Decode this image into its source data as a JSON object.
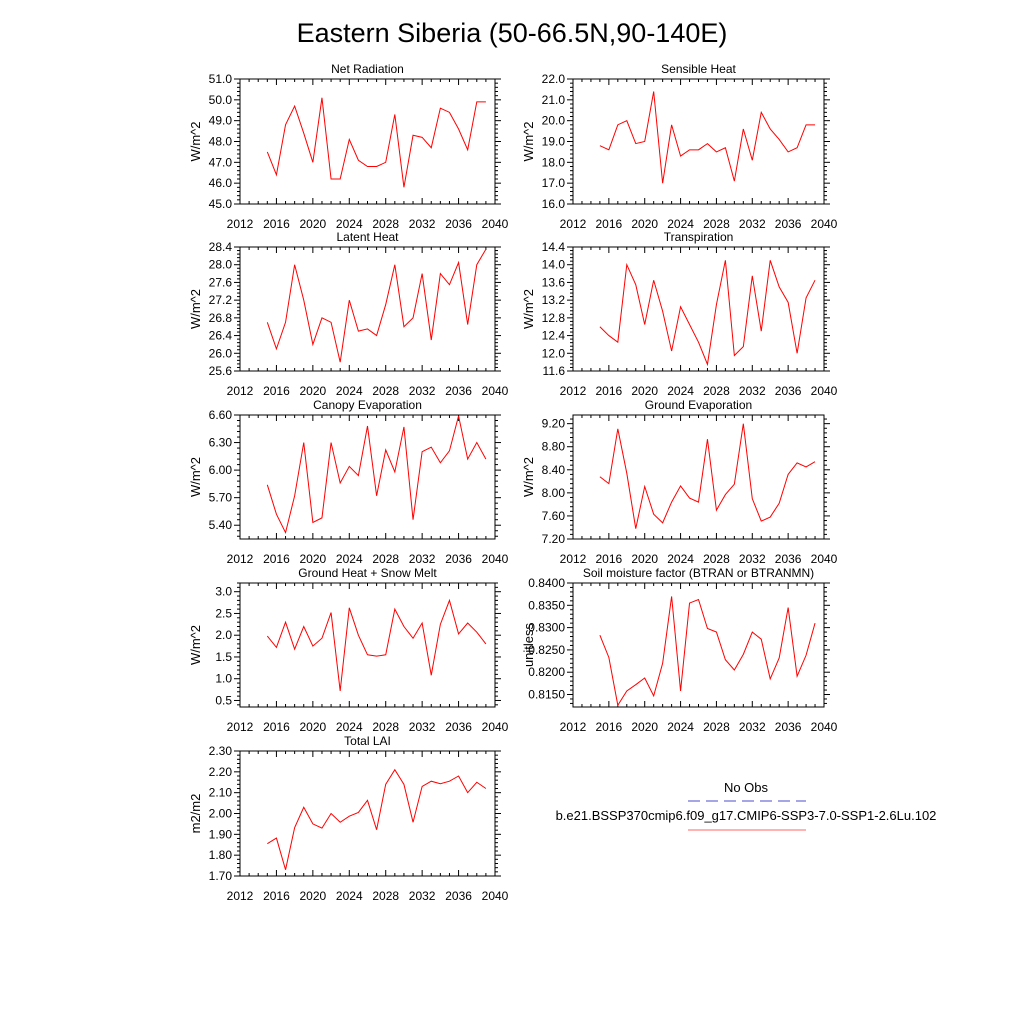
{
  "page_title": "Eastern Siberia (50-66.5N,90-140E)",
  "legend": {
    "items": [
      {
        "label": "No Obs",
        "color": "#4d4dcc",
        "style": "dashed"
      },
      {
        "label": "b.e21.BSSP370cmip6.f09_g17.CMIP6-SSP3-7.0-SSP1-2.6Lu.102",
        "color": "#ff6666",
        "style": "solid"
      }
    ]
  },
  "chart_data": [
    {
      "type": "line",
      "title": "Net Radiation",
      "ylabel": "W/m^2",
      "xlim": [
        2012,
        2040
      ],
      "xticks": [
        2012,
        2016,
        2020,
        2024,
        2028,
        2032,
        2036,
        2040
      ],
      "ylim": [
        45.0,
        51.0
      ],
      "yticks": [
        "45.0",
        "46.0",
        "47.0",
        "48.0",
        "49.0",
        "50.0",
        "51.0"
      ],
      "x": [
        2015,
        2016,
        2017,
        2018,
        2019,
        2020,
        2021,
        2022,
        2023,
        2024,
        2025,
        2026,
        2027,
        2028,
        2029,
        2030,
        2031,
        2032,
        2033,
        2034,
        2035,
        2036,
        2037,
        2038,
        2039
      ],
      "series": [
        {
          "color": "#ff0000",
          "values": [
            47.5,
            46.4,
            48.8,
            49.7,
            48.4,
            47.0,
            50.1,
            46.2,
            46.2,
            48.1,
            47.1,
            46.8,
            46.8,
            47.0,
            49.3,
            45.8,
            48.3,
            48.2,
            47.7,
            49.6,
            49.4,
            48.6,
            47.6,
            49.9,
            49.9
          ]
        }
      ]
    },
    {
      "type": "line",
      "title": "Sensible Heat",
      "ylabel": "W/m^2",
      "xlim": [
        2012,
        2040
      ],
      "xticks": [
        2012,
        2016,
        2020,
        2024,
        2028,
        2032,
        2036,
        2040
      ],
      "ylim": [
        16.0,
        22.0
      ],
      "yticks": [
        "16.0",
        "17.0",
        "18.0",
        "19.0",
        "20.0",
        "21.0",
        "22.0"
      ],
      "x": [
        2015,
        2016,
        2017,
        2018,
        2019,
        2020,
        2021,
        2022,
        2023,
        2024,
        2025,
        2026,
        2027,
        2028,
        2029,
        2030,
        2031,
        2032,
        2033,
        2034,
        2035,
        2036,
        2037,
        2038,
        2039
      ],
      "series": [
        {
          "color": "#ff0000",
          "values": [
            18.8,
            18.6,
            19.8,
            20.0,
            18.9,
            19.0,
            21.4,
            17.0,
            19.8,
            18.3,
            18.6,
            18.6,
            18.9,
            18.5,
            18.7,
            17.1,
            19.6,
            18.1,
            20.4,
            19.6,
            19.1,
            18.5,
            18.7,
            19.8,
            19.8
          ]
        }
      ]
    },
    {
      "type": "line",
      "title": "Latent Heat",
      "ylabel": "W/m^2",
      "xlim": [
        2012,
        2040
      ],
      "xticks": [
        2012,
        2016,
        2020,
        2024,
        2028,
        2032,
        2036,
        2040
      ],
      "ylim": [
        25.6,
        28.4
      ],
      "yticks": [
        "25.6",
        "26.0",
        "26.4",
        "26.8",
        "27.2",
        "27.6",
        "28.0",
        "28.4"
      ],
      "x": [
        2015,
        2016,
        2017,
        2018,
        2019,
        2020,
        2021,
        2022,
        2023,
        2024,
        2025,
        2026,
        2027,
        2028,
        2029,
        2030,
        2031,
        2032,
        2033,
        2034,
        2035,
        2036,
        2037,
        2038,
        2039
      ],
      "series": [
        {
          "color": "#ff0000",
          "values": [
            26.7,
            26.1,
            26.7,
            28.0,
            27.2,
            26.2,
            26.8,
            26.7,
            25.8,
            27.2,
            26.5,
            26.55,
            26.4,
            27.1,
            28.0,
            26.6,
            26.8,
            27.8,
            26.3,
            27.8,
            27.55,
            28.05,
            26.65,
            28.0,
            28.35
          ]
        }
      ]
    },
    {
      "type": "line",
      "title": "Transpiration",
      "ylabel": "W/m^2",
      "xlim": [
        2012,
        2040
      ],
      "xticks": [
        2012,
        2016,
        2020,
        2024,
        2028,
        2032,
        2036,
        2040
      ],
      "ylim": [
        11.6,
        14.4
      ],
      "yticks": [
        "11.6",
        "12.0",
        "12.4",
        "12.8",
        "13.2",
        "13.6",
        "14.0",
        "14.4"
      ],
      "x": [
        2015,
        2016,
        2017,
        2018,
        2019,
        2020,
        2021,
        2022,
        2023,
        2024,
        2025,
        2026,
        2027,
        2028,
        2029,
        2030,
        2031,
        2032,
        2033,
        2034,
        2035,
        2036,
        2037,
        2038,
        2039
      ],
      "series": [
        {
          "color": "#ff0000",
          "values": [
            12.6,
            12.4,
            12.25,
            14.0,
            13.55,
            12.65,
            13.65,
            12.95,
            12.05,
            13.05,
            12.65,
            12.25,
            11.75,
            13.1,
            14.1,
            11.95,
            12.15,
            13.75,
            12.5,
            14.1,
            13.5,
            13.15,
            12.0,
            13.25,
            13.65
          ]
        }
      ]
    },
    {
      "type": "line",
      "title": "Canopy Evaporation",
      "ylabel": "W/m^2",
      "xlim": [
        2012,
        2040
      ],
      "xticks": [
        2012,
        2016,
        2020,
        2024,
        2028,
        2032,
        2036,
        2040
      ],
      "ylim": [
        5.25,
        6.6
      ],
      "yticks": [
        "5.40",
        "5.70",
        "6.00",
        "6.30",
        "6.60"
      ],
      "x": [
        2015,
        2016,
        2017,
        2018,
        2019,
        2020,
        2021,
        2022,
        2023,
        2024,
        2025,
        2026,
        2027,
        2028,
        2029,
        2030,
        2031,
        2032,
        2033,
        2034,
        2035,
        2036,
        2037,
        2038,
        2039
      ],
      "series": [
        {
          "color": "#ff0000",
          "values": [
            5.84,
            5.52,
            5.32,
            5.72,
            6.3,
            5.43,
            5.48,
            6.3,
            5.86,
            6.04,
            5.94,
            6.48,
            5.72,
            6.22,
            5.98,
            6.47,
            5.46,
            6.2,
            6.25,
            6.08,
            6.21,
            6.59,
            6.12,
            6.3,
            6.12
          ]
        }
      ]
    },
    {
      "type": "line",
      "title": "Ground Evaporation",
      "ylabel": "W/m^2",
      "xlim": [
        2012,
        2040
      ],
      "xticks": [
        2012,
        2016,
        2020,
        2024,
        2028,
        2032,
        2036,
        2040
      ],
      "ylim": [
        7.2,
        9.35
      ],
      "yticks": [
        "7.20",
        "7.60",
        "8.00",
        "8.40",
        "8.80",
        "9.20"
      ],
      "x": [
        2015,
        2016,
        2017,
        2018,
        2019,
        2020,
        2021,
        2022,
        2023,
        2024,
        2025,
        2026,
        2027,
        2028,
        2029,
        2030,
        2031,
        2032,
        2033,
        2034,
        2035,
        2036,
        2037,
        2038,
        2039
      ],
      "series": [
        {
          "color": "#ff0000",
          "values": [
            8.28,
            8.16,
            9.11,
            8.34,
            7.38,
            8.11,
            7.63,
            7.48,
            7.84,
            8.12,
            7.91,
            7.84,
            8.93,
            7.7,
            7.97,
            8.15,
            9.2,
            7.9,
            7.51,
            7.58,
            7.82,
            8.32,
            8.52,
            8.45,
            8.54
          ]
        }
      ]
    },
    {
      "type": "line",
      "title": "Ground Heat + Snow Melt",
      "ylabel": "W/m^2",
      "xlim": [
        2012,
        2040
      ],
      "xticks": [
        2012,
        2016,
        2020,
        2024,
        2028,
        2032,
        2036,
        2040
      ],
      "ylim": [
        0.35,
        3.2
      ],
      "yticks": [
        "0.5",
        "1.0",
        "1.5",
        "2.0",
        "2.5",
        "3.0"
      ],
      "x": [
        2015,
        2016,
        2017,
        2018,
        2019,
        2020,
        2021,
        2022,
        2023,
        2024,
        2025,
        2026,
        2027,
        2028,
        2029,
        2030,
        2031,
        2032,
        2033,
        2034,
        2035,
        2036,
        2037,
        2038,
        2039
      ],
      "series": [
        {
          "color": "#ff0000",
          "values": [
            1.98,
            1.72,
            2.3,
            1.68,
            2.2,
            1.75,
            1.93,
            2.52,
            0.72,
            2.63,
            2.0,
            1.55,
            1.52,
            1.55,
            2.6,
            2.2,
            1.93,
            2.28,
            1.08,
            2.25,
            2.8,
            2.03,
            2.28,
            2.07,
            1.8
          ]
        }
      ]
    },
    {
      "type": "line",
      "title": "Soil moisture factor (BTRAN or BTRANMN)",
      "ylabel": "unitless",
      "xlim": [
        2012,
        2040
      ],
      "xticks": [
        2012,
        2016,
        2020,
        2024,
        2028,
        2032,
        2036,
        2040
      ],
      "ylim": [
        0.8122,
        0.84
      ],
      "yticks": [
        "0.8150",
        "0.8200",
        "0.8250",
        "0.8300",
        "0.8350",
        "0.8400"
      ],
      "x": [
        2015,
        2016,
        2017,
        2018,
        2019,
        2020,
        2021,
        2022,
        2023,
        2024,
        2025,
        2026,
        2027,
        2028,
        2029,
        2030,
        2031,
        2032,
        2033,
        2034,
        2035,
        2036,
        2037,
        2038,
        2039
      ],
      "series": [
        {
          "color": "#ff0000",
          "values": [
            0.8283,
            0.8233,
            0.8126,
            0.8158,
            0.8172,
            0.8187,
            0.8147,
            0.822,
            0.837,
            0.8158,
            0.8355,
            0.8363,
            0.8298,
            0.829,
            0.8228,
            0.8205,
            0.824,
            0.829,
            0.8274,
            0.8185,
            0.8232,
            0.8345,
            0.8191,
            0.8238,
            0.831
          ]
        }
      ]
    },
    {
      "type": "line",
      "title": "Total LAI",
      "ylabel": "m2/m2",
      "xlim": [
        2012,
        2040
      ],
      "xticks": [
        2012,
        2016,
        2020,
        2024,
        2028,
        2032,
        2036,
        2040
      ],
      "ylim": [
        1.7,
        2.3
      ],
      "yticks": [
        "1.70",
        "1.80",
        "1.90",
        "2.00",
        "2.10",
        "2.20",
        "2.30"
      ],
      "x": [
        2015,
        2016,
        2017,
        2018,
        2019,
        2020,
        2021,
        2022,
        2023,
        2024,
        2025,
        2026,
        2027,
        2028,
        2029,
        2030,
        2031,
        2032,
        2033,
        2034,
        2035,
        2036,
        2037,
        2038,
        2039
      ],
      "series": [
        {
          "color": "#ff0000",
          "values": [
            1.855,
            1.882,
            1.73,
            1.932,
            2.03,
            1.95,
            1.93,
            2.0,
            1.958,
            1.987,
            2.005,
            2.063,
            1.922,
            2.14,
            2.21,
            2.14,
            1.958,
            2.13,
            2.155,
            2.143,
            2.155,
            2.18,
            2.1,
            2.15,
            2.12
          ]
        }
      ]
    }
  ]
}
